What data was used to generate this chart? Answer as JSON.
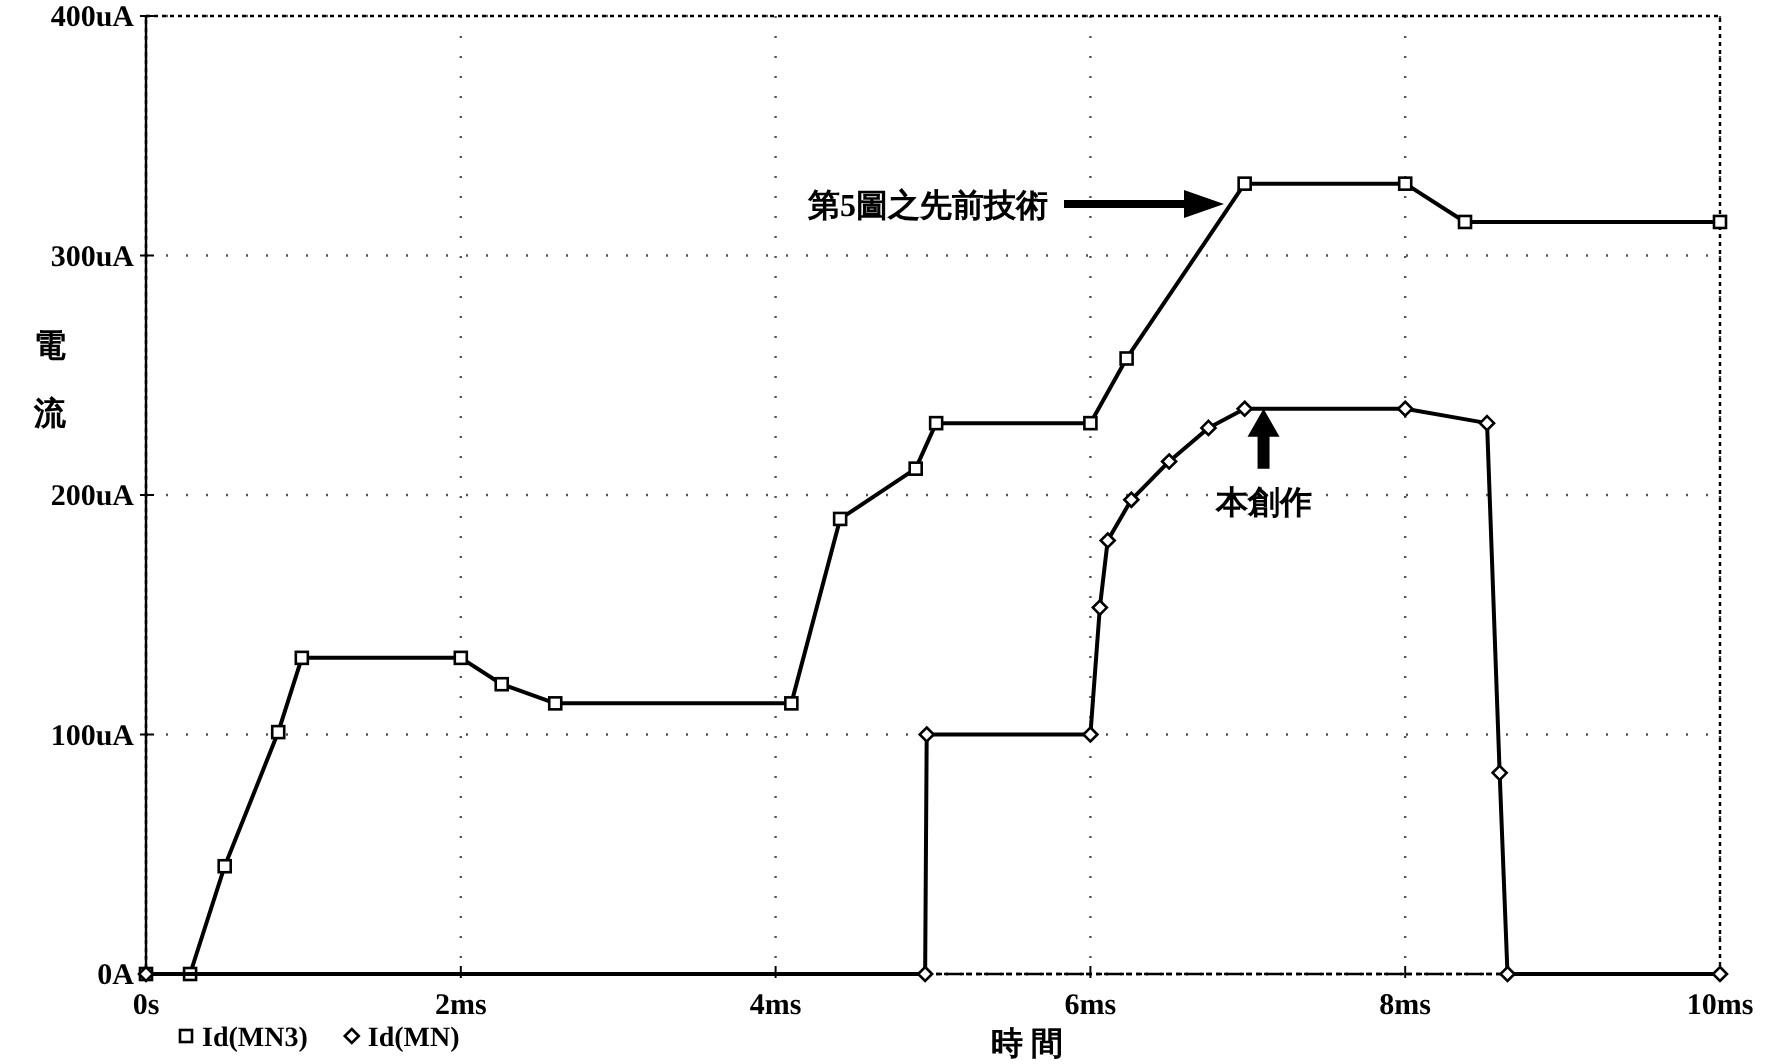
{
  "chart_data": {
    "type": "line",
    "xlabel": "時 間",
    "ylabel": "電流",
    "xlim": [
      0,
      10
    ],
    "ylim": [
      0,
      400
    ],
    "xticks": [
      {
        "value": 0,
        "label": "0s"
      },
      {
        "value": 2,
        "label": "2ms"
      },
      {
        "value": 4,
        "label": "4ms"
      },
      {
        "value": 6,
        "label": "6ms"
      },
      {
        "value": 8,
        "label": "8ms"
      },
      {
        "value": 10,
        "label": "10ms"
      }
    ],
    "yticks": [
      {
        "value": 0,
        "label": "0A"
      },
      {
        "value": 100,
        "label": "100uA"
      },
      {
        "value": 200,
        "label": "200uA"
      },
      {
        "value": 300,
        "label": "300uA"
      },
      {
        "value": 400,
        "label": "400uA"
      }
    ],
    "grid": true,
    "legend": "bottom left",
    "line_style": "solid",
    "series": [
      {
        "name": "Id(MN3)",
        "color": "#000000",
        "marker": "square",
        "x": [
          0,
          0.28,
          0.5,
          0.84,
          0.99,
          2.0,
          2.26,
          2.6,
          4.1,
          4.41,
          4.89,
          5.02,
          6.0,
          6.23,
          6.98,
          8.0,
          8.38,
          10
        ],
        "values": [
          0,
          0,
          45,
          101,
          132,
          132,
          121,
          113,
          113,
          190,
          211,
          230,
          230,
          257,
          330,
          330,
          314,
          314
        ]
      },
      {
        "name": "Id(MN)",
        "color": "#000000",
        "marker": "diamond",
        "x": [
          0,
          4.95,
          4.96,
          6.0,
          6.06,
          6.11,
          6.26,
          6.5,
          6.75,
          6.98,
          8.0,
          8.52,
          8.6,
          8.65,
          10
        ],
        "values": [
          0,
          0,
          100,
          100,
          153,
          181,
          198,
          214,
          228,
          236,
          236,
          230,
          84,
          0,
          0
        ]
      }
    ],
    "annotations": [
      "第5圖之先前技術",
      {
        "text": "本創作",
        "x": 7.1,
        "y": 236
      }
    ]
  }
}
